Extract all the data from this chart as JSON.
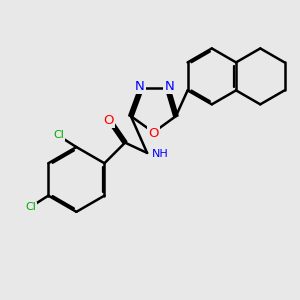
{
  "bg_color": "#e8e8e8",
  "bond_color": "#000000",
  "bond_width": 1.8,
  "dbo": 0.08,
  "atom_colors": {
    "N": "#0000ff",
    "O": "#ff0000",
    "Cl": "#00aa00"
  },
  "font_size": 8.5,
  "fig_size": [
    3.0,
    3.0
  ],
  "dpi": 100
}
